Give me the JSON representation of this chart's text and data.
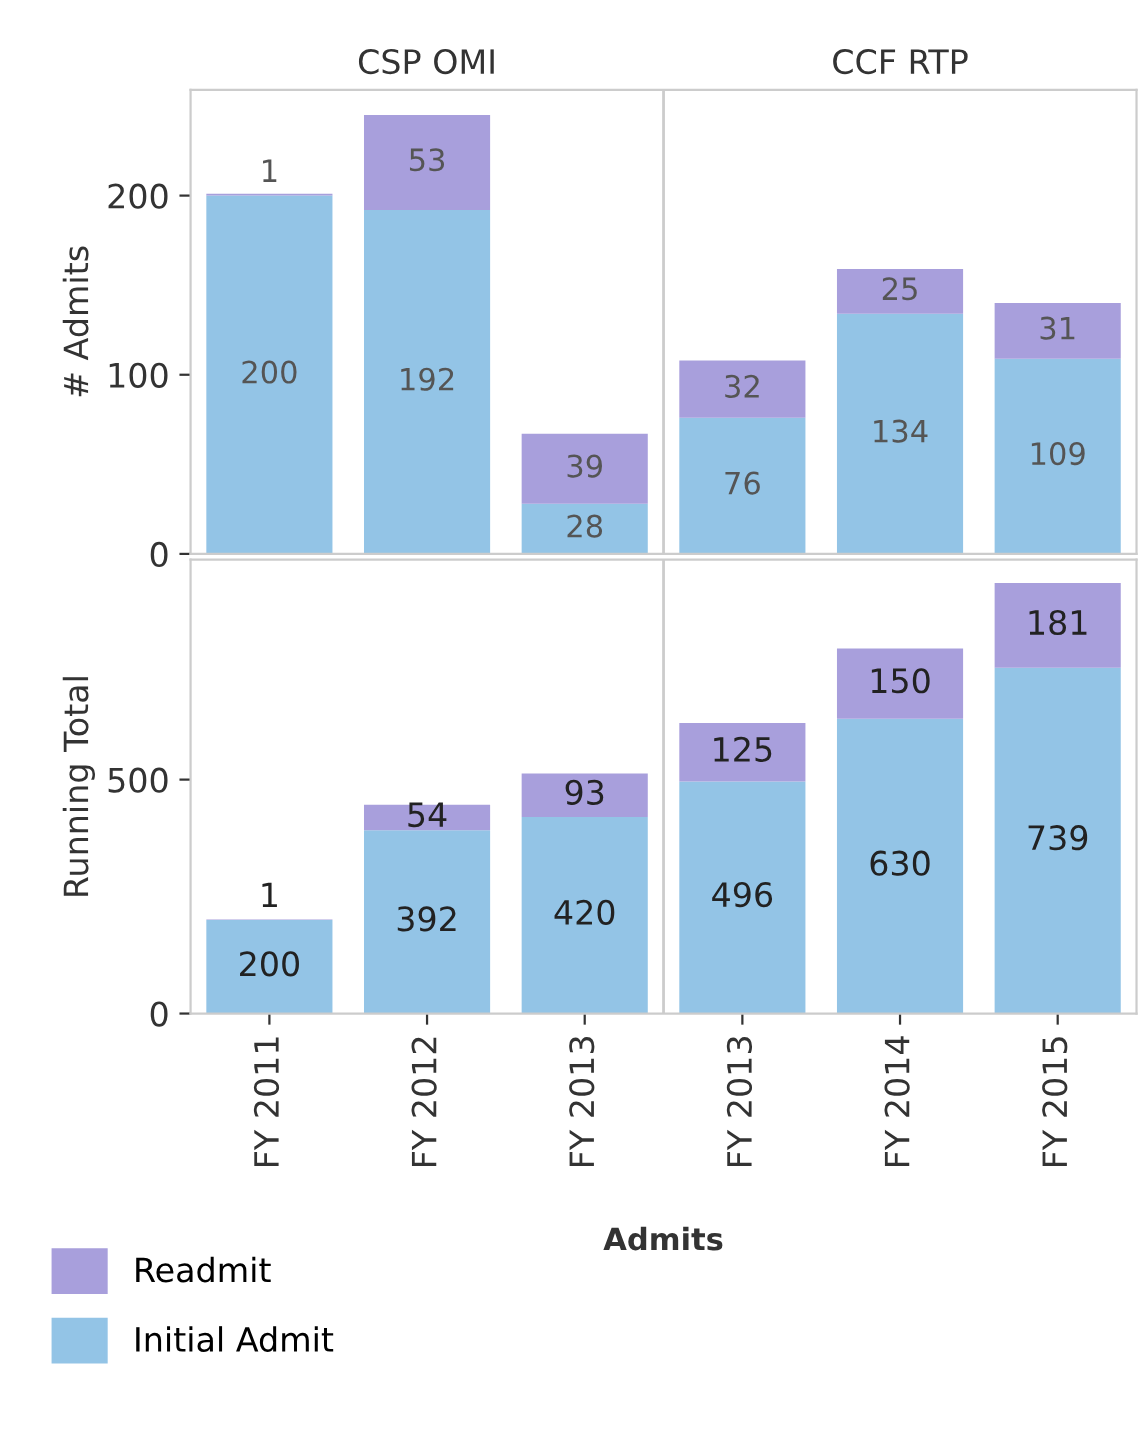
{
  "chart_data": [
    {
      "type": "bar",
      "stacked": true,
      "ylabel": "# Admits",
      "annotations": [
        "CSP OMI",
        "CCF RTP"
      ],
      "categories": [
        null,
        null,
        null,
        null,
        null,
        null
      ],
      "ylim": [
        0,
        259
      ],
      "yticks": [
        0,
        100,
        200
      ],
      "tick_labels": "y",
      "data_labels": true,
      "legend": "bottom",
      "series": [
        {
          "name": "Initial Admit",
          "color": "#93c4e6",
          "values": [
            200,
            192,
            28,
            76,
            134,
            109
          ]
        },
        {
          "name": "Readmit",
          "color": "#a89fdc",
          "values": [
            1,
            53,
            39,
            32,
            25,
            31
          ]
        }
      ]
    },
    {
      "type": "bar",
      "stacked": true,
      "ylabel": "Running Total",
      "xlabel": "Admits",
      "categories": [
        "FY 2011",
        "FY 2012",
        "FY 2013",
        "FY 2013",
        "FY 2014",
        "FY 2015"
      ],
      "ylim": [
        0,
        970
      ],
      "yticks": [
        0,
        500
      ],
      "data_labels": true,
      "series": [
        {
          "color": "#93c4e6",
          "values": [
            200,
            392,
            420,
            496,
            630,
            739
          ]
        },
        {
          "color": "#a89fdc",
          "values": [
            1,
            54,
            93,
            125,
            150,
            181
          ]
        }
      ]
    }
  ]
}
